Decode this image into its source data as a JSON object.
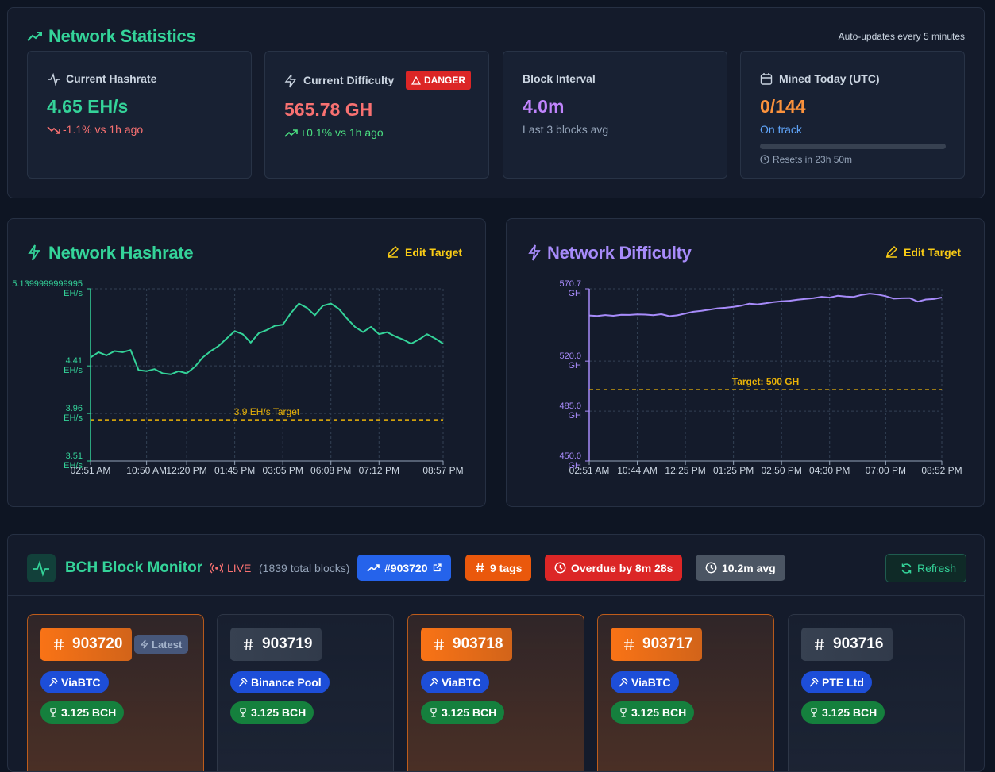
{
  "stats": {
    "title": "Network Statistics",
    "note": "Auto-updates every 5 minutes",
    "cards": [
      {
        "label": "Current Hashrate",
        "value": "4.65 EH/s",
        "change": "-1.1% vs 1h ago"
      },
      {
        "label": "Current Difficulty",
        "badge": "DANGER",
        "value": "565.78 GH",
        "change": "+0.1% vs 1h ago"
      },
      {
        "label": "Block Interval",
        "value": "4.0m",
        "change": "Last 3 blocks avg"
      },
      {
        "label": "Mined Today (UTC)",
        "value": "0/144",
        "change": "On track",
        "reset": "Resets in 23h 50m"
      }
    ]
  },
  "chart_data": [
    {
      "type": "line",
      "title": "Network Hashrate",
      "action": "Edit Target",
      "color": "#34d399",
      "grid": true,
      "categories": [
        "02:51 AM",
        null,
        null,
        null,
        null,
        null,
        null,
        "10:50 AM",
        null,
        null,
        null,
        null,
        "12:20 PM",
        null,
        null,
        null,
        null,
        null,
        "01:45 PM",
        null,
        null,
        null,
        null,
        null,
        "03:05 PM",
        null,
        null,
        null,
        null,
        null,
        "06:08 PM",
        null,
        null,
        null,
        null,
        null,
        "07:12 PM",
        null,
        null,
        null,
        null,
        null,
        null,
        null,
        "08:57 PM"
      ],
      "values": [
        4.49,
        4.54,
        4.51,
        4.55,
        4.54,
        4.56,
        4.37,
        4.36,
        4.38,
        4.34,
        4.33,
        4.36,
        4.34,
        4.4,
        4.49,
        4.55,
        4.6,
        4.67,
        4.74,
        4.71,
        4.63,
        4.72,
        4.75,
        4.79,
        4.8,
        4.91,
        5.0,
        4.96,
        4.89,
        4.98,
        5.0,
        4.95,
        4.86,
        4.78,
        4.73,
        4.78,
        4.71,
        4.73,
        4.69,
        4.66,
        4.62,
        4.66,
        4.71,
        4.67,
        4.62
      ],
      "ylim": [
        3.51,
        5.1399999999995
      ],
      "yticks": [
        {
          "value": 3.51,
          "label": "3.51 EH/s"
        },
        {
          "value": 3.96,
          "label": "3.96 EH/s"
        },
        {
          "value": 4.41,
          "label": "4.41 EH/s"
        },
        {
          "value": 5.1399999999995,
          "label": "5.1399999999995 EH/s"
        }
      ],
      "target": {
        "value": 3.9,
        "label": "3.9 EH/s Target"
      }
    },
    {
      "type": "line",
      "title": "Network Difficulty",
      "action": "Edit Target",
      "color": "#a78bfa",
      "grid": true,
      "categories": [
        "02:51 AM",
        null,
        null,
        null,
        null,
        null,
        "10:44 AM",
        null,
        null,
        null,
        null,
        null,
        "12:25 PM",
        null,
        null,
        null,
        null,
        null,
        "01:25 PM",
        null,
        null,
        null,
        null,
        null,
        "02:50 PM",
        null,
        null,
        null,
        null,
        null,
        "04:30 PM",
        null,
        null,
        null,
        null,
        null,
        null,
        "07:00 PM",
        null,
        null,
        null,
        null,
        null,
        null,
        "08:52 PM"
      ],
      "values": [
        552.0,
        551.6,
        552.3,
        551.8,
        552.5,
        552.4,
        552.8,
        552.6,
        552.2,
        552.9,
        551.5,
        552.1,
        553.4,
        554.6,
        555.3,
        556.1,
        557.0,
        557.4,
        558.1,
        558.9,
        560.3,
        559.8,
        560.5,
        561.4,
        561.9,
        562.3,
        563.0,
        563.6,
        564.2,
        565.1,
        564.6,
        565.8,
        565.3,
        565.0,
        566.4,
        567.3,
        566.7,
        565.5,
        563.8,
        564.1,
        564.2,
        561.7,
        563.2,
        563.5,
        564.6
      ],
      "ylim": [
        450,
        570.7
      ],
      "yticks": [
        {
          "value": 450,
          "label": "450.0 GH"
        },
        {
          "value": 485,
          "label": "485.0 GH"
        },
        {
          "value": 520,
          "label": "520.0 GH"
        },
        {
          "value": 570.7,
          "label": "570.7 GH"
        }
      ],
      "target": {
        "value": 500,
        "label": "Target: 500 GH"
      }
    }
  ],
  "monitor": {
    "title": "BCH Block Monitor",
    "live": "LIVE",
    "total": "(1839 total blocks)",
    "latest": "#903720",
    "tags": "9 tags",
    "overdue": "Overdue by 8m 28s",
    "avg": "10.2m avg",
    "refresh": "Refresh",
    "blocks": [
      {
        "height": 903720,
        "badge": "Latest",
        "pool": "ViaBTC",
        "reward": "3.125 BCH",
        "color": "#f97316"
      },
      {
        "height": 903719,
        "pool": "Binance Pool",
        "reward": "3.125 BCH",
        "color": "#374151"
      },
      {
        "height": 903718,
        "pool": "ViaBTC",
        "reward": "3.125 BCH",
        "color": "#f97316"
      },
      {
        "height": 903717,
        "pool": "ViaBTC",
        "reward": "3.125 BCH",
        "color": "#f97316"
      },
      {
        "height": 903716,
        "pool": "PTE Ltd",
        "reward": "3.125 BCH",
        "color": "#374151"
      }
    ]
  }
}
